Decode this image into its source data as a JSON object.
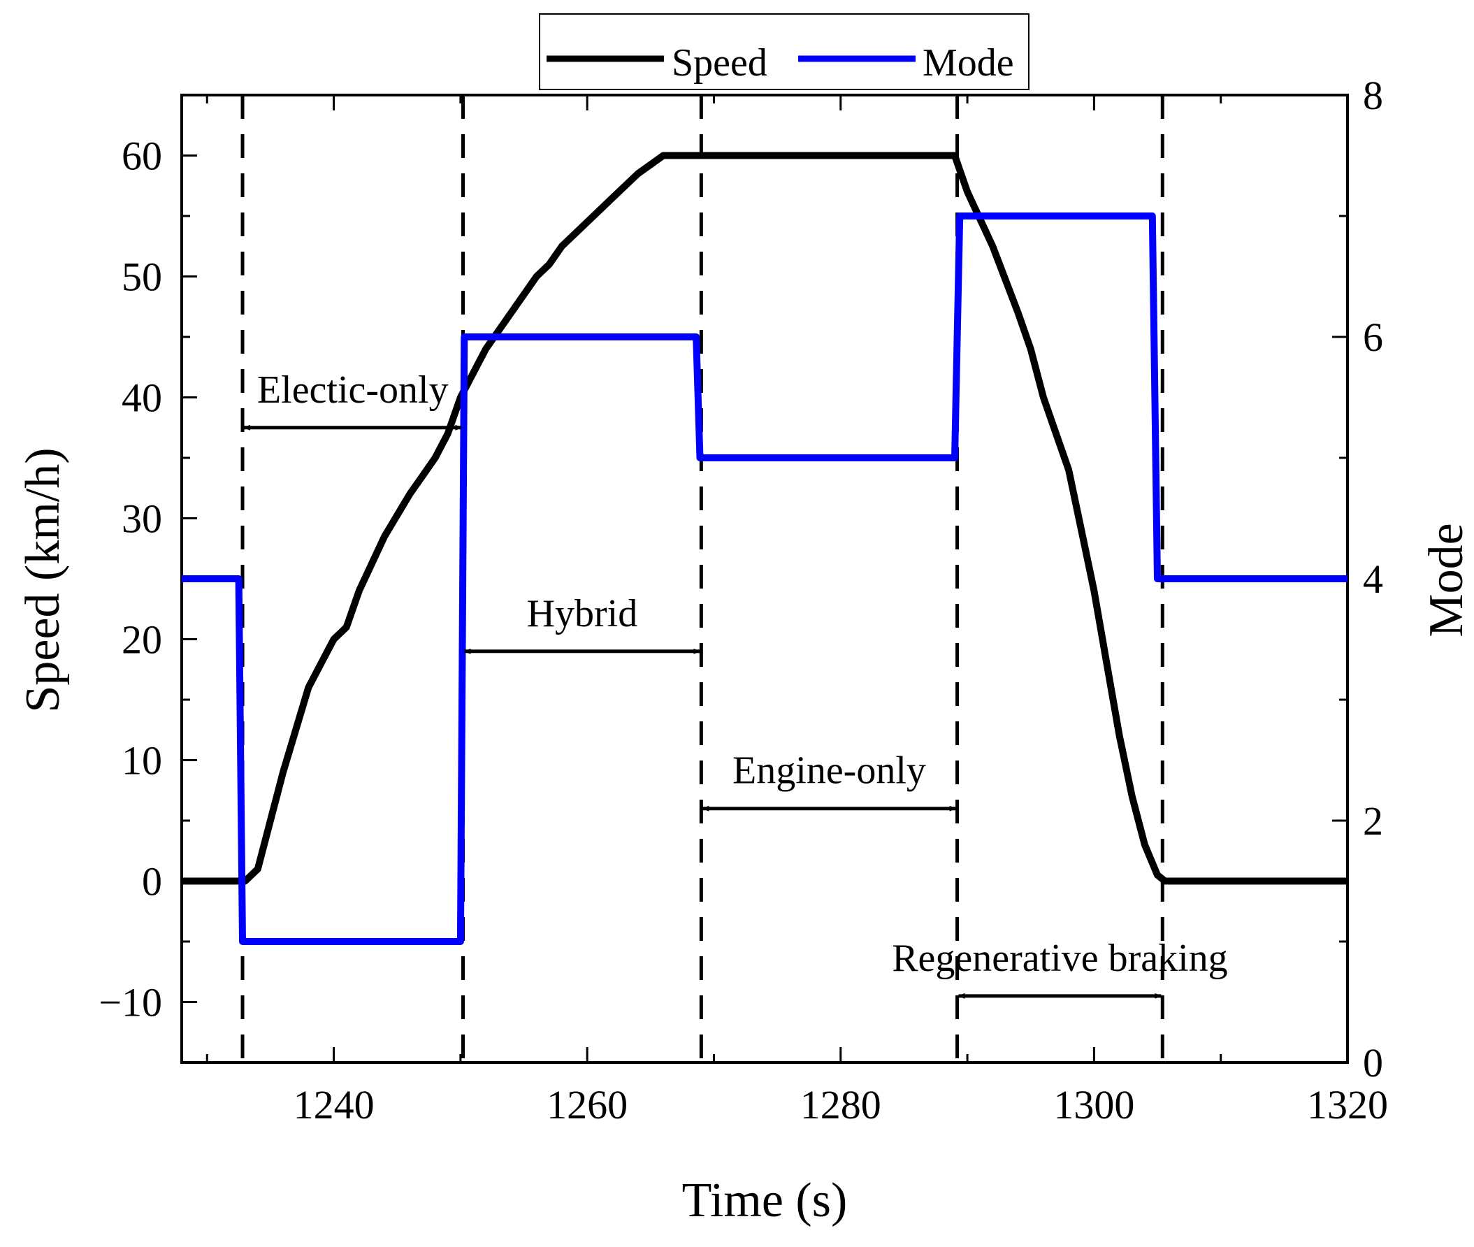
{
  "chart_data": {
    "type": "line",
    "title": "",
    "xlabel": "Time (s)",
    "ylabel": "Speed (km/h)",
    "y2label": "Mode",
    "xlim": [
      1228,
      1320
    ],
    "ylim": [
      -15,
      65
    ],
    "y2lim": [
      0,
      8
    ],
    "xticks": [
      1240,
      1260,
      1280,
      1300,
      1320
    ],
    "xtick_labels": [
      "1240",
      "1260",
      "1280",
      "1300",
      "1320"
    ],
    "yticks": [
      -10,
      0,
      10,
      20,
      30,
      40,
      50,
      60
    ],
    "ytick_labels": [
      "−10",
      "0",
      "10",
      "20",
      "30",
      "40",
      "50",
      "60"
    ],
    "y2ticks": [
      0,
      2,
      4,
      6,
      8
    ],
    "y2tick_labels": [
      "0",
      "2",
      "4",
      "6",
      "8"
    ],
    "legend": {
      "position": "top-center",
      "entries": [
        "Speed",
        "Mode"
      ]
    },
    "colors": {
      "speed": "#000000",
      "mode": "#0000ff"
    },
    "series": [
      {
        "name": "Speed",
        "axis": "left",
        "x": [
          1228,
          1233,
          1234,
          1236,
          1238,
          1239,
          1240,
          1241,
          1242,
          1244,
          1246,
          1247,
          1248,
          1249,
          1250,
          1252,
          1254,
          1256,
          1257,
          1258,
          1260,
          1262,
          1264,
          1266,
          1268,
          1269,
          1270,
          1275,
          1280,
          1285,
          1289,
          1290,
          1292,
          1294,
          1295,
          1296,
          1298,
          1299,
          1300,
          1301,
          1302,
          1303,
          1304,
          1305,
          1305.6,
          1310,
          1320
        ],
        "values": [
          0,
          0,
          1,
          9,
          16,
          18,
          20,
          21,
          24,
          28.5,
          32,
          33.5,
          35,
          37,
          40,
          44,
          47,
          50,
          51,
          52.5,
          54.5,
          56.5,
          58.5,
          60,
          60,
          60,
          60,
          60,
          60,
          60,
          60,
          57,
          52.5,
          47,
          44,
          40,
          34,
          29,
          24,
          18,
          12,
          7,
          3,
          0.5,
          0,
          0,
          0
        ]
      },
      {
        "name": "Mode",
        "axis": "right",
        "x": [
          1228,
          1232.5,
          1232.8,
          1250,
          1250.3,
          1268.6,
          1268.9,
          1289,
          1289.4,
          1304.6,
          1305,
          1320
        ],
        "values": [
          4,
          4,
          1,
          1,
          6,
          6,
          5,
          5,
          7,
          7,
          4,
          4
        ]
      }
    ],
    "phase_boundaries": [
      1232.8,
      1250.2,
      1269,
      1289.2,
      1305.4
    ],
    "annotations": [
      {
        "text": "Electic-only",
        "from": 1232.8,
        "to": 1250.2,
        "y": 37.5
      },
      {
        "text": "Hybrid",
        "from": 1250.2,
        "to": 1269,
        "y": 19
      },
      {
        "text": "Engine-only",
        "from": 1269,
        "to": 1289.2,
        "y": 6
      },
      {
        "text": "Regenerative braking",
        "from": 1289.2,
        "to": 1305.4,
        "y": -9.5
      }
    ]
  }
}
